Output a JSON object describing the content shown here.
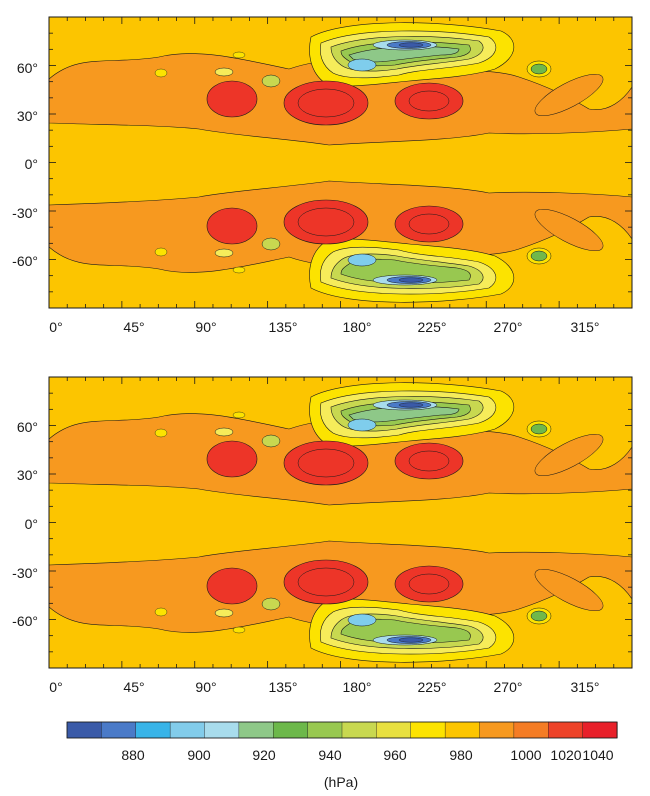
{
  "panels": [
    {
      "id": "top",
      "lat_labels": [
        "60°",
        "30°",
        "0°",
        "-30°",
        "-60°"
      ],
      "lon_labels": [
        "0°",
        "45°",
        "90°",
        "135°",
        "180°",
        "225°",
        "270°",
        "315°"
      ]
    },
    {
      "id": "bottom",
      "lat_labels": [
        "60°",
        "30°",
        "0°",
        "-30°",
        "-60°"
      ],
      "lon_labels": [
        "0°",
        "45°",
        "90°",
        "135°",
        "180°",
        "225°",
        "270°",
        "315°"
      ]
    }
  ],
  "colorbar": {
    "labels": [
      "880",
      "900",
      "920",
      "940",
      "960",
      "980",
      "1000",
      "1020",
      "1040"
    ],
    "unit": "(hPa)",
    "colors": [
      "#3a5aa8",
      "#4a7ac8",
      "#38b4e8",
      "#82ccea",
      "#a8dcec",
      "#8ec888",
      "#6cb84a",
      "#98c850",
      "#c8d850",
      "#e8e040",
      "#fce300",
      "#fcc500",
      "#f7991f",
      "#f47c24",
      "#ed4228",
      "#e8202a"
    ]
  },
  "colors": {
    "background": "#fcc500",
    "orange": "#f7991f",
    "red": "#ed3528",
    "yellow": "#fce300",
    "pale_yellow": "#f6ec5a",
    "green": "#70b84a",
    "light_blue": "#7fcdec",
    "mid_blue": "#38b4e8",
    "dark_blue": "#3a5aa8"
  }
}
